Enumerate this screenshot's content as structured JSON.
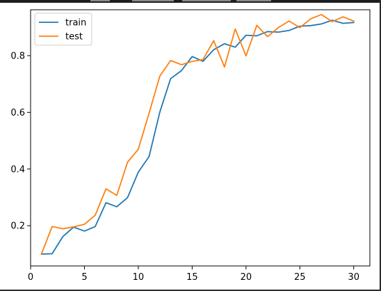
{
  "chart_data": {
    "type": "line",
    "title": "",
    "xlabel": "",
    "ylabel": "",
    "xlim": [
      0,
      31.5
    ],
    "ylim": [
      0.058,
      0.962
    ],
    "xticks": [
      0,
      5,
      10,
      15,
      20,
      25,
      30
    ],
    "yticks": [
      0.2,
      0.4,
      0.6,
      0.8
    ],
    "xtick_labels": [
      "0",
      "5",
      "10",
      "15",
      "20",
      "25",
      "30"
    ],
    "ytick_labels": [
      "0.2",
      "0.4",
      "0.6",
      "0.8"
    ],
    "grid": false,
    "legend_position": "top-left",
    "x": [
      1,
      2,
      3,
      4,
      5,
      6,
      7,
      8,
      9,
      10,
      11,
      12,
      13,
      14,
      15,
      16,
      17,
      18,
      19,
      20,
      21,
      22,
      23,
      24,
      25,
      26,
      27,
      28,
      29,
      30
    ],
    "series": [
      {
        "name": "train",
        "color": "#1f77b4",
        "values": [
          0.1,
          0.101,
          0.162,
          0.195,
          0.181,
          0.197,
          0.281,
          0.267,
          0.299,
          0.389,
          0.444,
          0.601,
          0.719,
          0.747,
          0.797,
          0.78,
          0.821,
          0.842,
          0.83,
          0.872,
          0.87,
          0.885,
          0.883,
          0.889,
          0.904,
          0.906,
          0.912,
          0.925,
          0.914,
          0.917
        ]
      },
      {
        "name": "test",
        "color": "#ff7f0e",
        "values": [
          0.1,
          0.197,
          0.189,
          0.196,
          0.205,
          0.237,
          0.33,
          0.307,
          0.424,
          0.47,
          0.597,
          0.728,
          0.783,
          0.768,
          0.78,
          0.786,
          0.853,
          0.76,
          0.894,
          0.799,
          0.907,
          0.867,
          0.899,
          0.922,
          0.899,
          0.93,
          0.945,
          0.92,
          0.937,
          0.922
        ]
      }
    ]
  }
}
